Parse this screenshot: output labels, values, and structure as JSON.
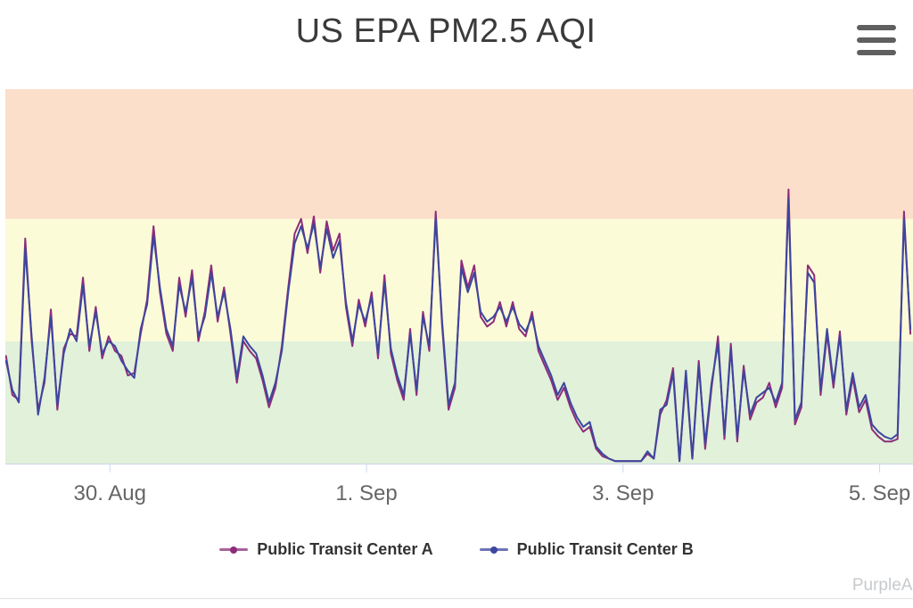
{
  "header": {
    "menu_icon": "hamburger-menu-icon"
  },
  "chart_data": {
    "type": "line",
    "title": "US EPA PM2.5 AQI",
    "xlabel": "",
    "ylabel": "",
    "grid": false,
    "legend_position": "bottom",
    "watermark": "PurpleAir",
    "x_axis": {
      "min": 0.185,
      "max": 7.26,
      "unit": "days (0 = 29. Aug 00:00)",
      "ticks": [
        {
          "pos": 1,
          "label": "30. Aug"
        },
        {
          "pos": 3,
          "label": "1. Sep"
        },
        {
          "pos": 5,
          "label": "3. Sep"
        },
        {
          "pos": 7,
          "label": "5. Sep"
        }
      ],
      "axis_color": "#ccd6eb"
    },
    "y_axis": {
      "min": 0,
      "max": 153
    },
    "plot_bands": [
      {
        "name": "good",
        "from": 0,
        "to": 50,
        "color": "#e1f1da"
      },
      {
        "name": "moderate",
        "from": 50,
        "to": 100,
        "color": "#fcfbd8"
      },
      {
        "name": "unhealthy-for-sensitive-groups",
        "from": 100,
        "to": 153,
        "color": "#fbdfca"
      }
    ],
    "sampling": {
      "x_start": 0.19,
      "x_step": 0.05
    },
    "series": [
      {
        "name": "Public Transit Center A",
        "color": "#8d2d7a",
        "values": [
          44,
          28,
          26,
          92,
          50,
          22,
          33,
          63,
          22,
          47,
          53,
          52,
          76,
          46,
          64,
          43,
          52,
          46,
          44,
          36,
          37,
          53,
          67,
          97,
          70,
          53,
          46,
          76,
          60,
          79,
          50,
          62,
          81,
          58,
          72,
          53,
          33,
          50,
          46,
          43,
          34,
          23,
          31,
          48,
          72,
          94,
          100,
          86,
          101,
          78,
          99,
          87,
          94,
          64,
          48,
          67,
          56,
          70,
          43,
          77,
          45,
          34,
          26,
          55,
          28,
          62,
          46,
          103,
          56,
          22,
          31,
          83,
          72,
          81,
          60,
          56,
          58,
          66,
          56,
          66,
          55,
          52,
          62,
          46,
          40,
          34,
          26,
          31,
          23,
          17,
          13,
          15,
          6,
          3,
          2,
          1,
          1,
          1,
          1,
          1,
          4,
          2,
          20,
          26,
          39,
          1,
          36,
          2,
          42,
          6,
          31,
          52,
          10,
          49,
          9,
          40,
          18,
          25,
          27,
          33,
          23,
          31,
          112,
          16,
          23,
          81,
          77,
          28,
          53,
          31,
          54,
          20,
          35,
          21,
          26,
          14,
          11,
          9,
          9,
          10,
          103,
          53
        ]
      },
      {
        "name": "Public Transit Center B",
        "color": "#3c469e",
        "values": [
          42,
          30,
          25,
          88,
          52,
          20,
          35,
          60,
          24,
          45,
          55,
          50,
          73,
          48,
          62,
          45,
          50,
          48,
          42,
          38,
          35,
          55,
          65,
          93,
          72,
          55,
          48,
          73,
          62,
          76,
          52,
          60,
          78,
          60,
          70,
          55,
          35,
          52,
          48,
          45,
          36,
          25,
          33,
          46,
          70,
          90,
          97,
          88,
          98,
          80,
          96,
          84,
          91,
          66,
          50,
          65,
          58,
          68,
          45,
          74,
          47,
          36,
          28,
          53,
          30,
          60,
          48,
          100,
          58,
          24,
          33,
          80,
          70,
          78,
          62,
          58,
          60,
          64,
          58,
          64,
          57,
          54,
          60,
          48,
          42,
          36,
          28,
          33,
          25,
          19,
          15,
          17,
          7,
          4,
          2,
          1,
          1,
          1,
          1,
          1,
          5,
          2,
          22,
          24,
          37,
          1,
          38,
          2,
          40,
          8,
          33,
          49,
          12,
          47,
          11,
          38,
          20,
          27,
          29,
          31,
          25,
          33,
          108,
          18,
          25,
          78,
          74,
          30,
          55,
          33,
          52,
          22,
          37,
          23,
          28,
          16,
          13,
          11,
          10,
          12,
          100,
          55
        ]
      }
    ]
  }
}
